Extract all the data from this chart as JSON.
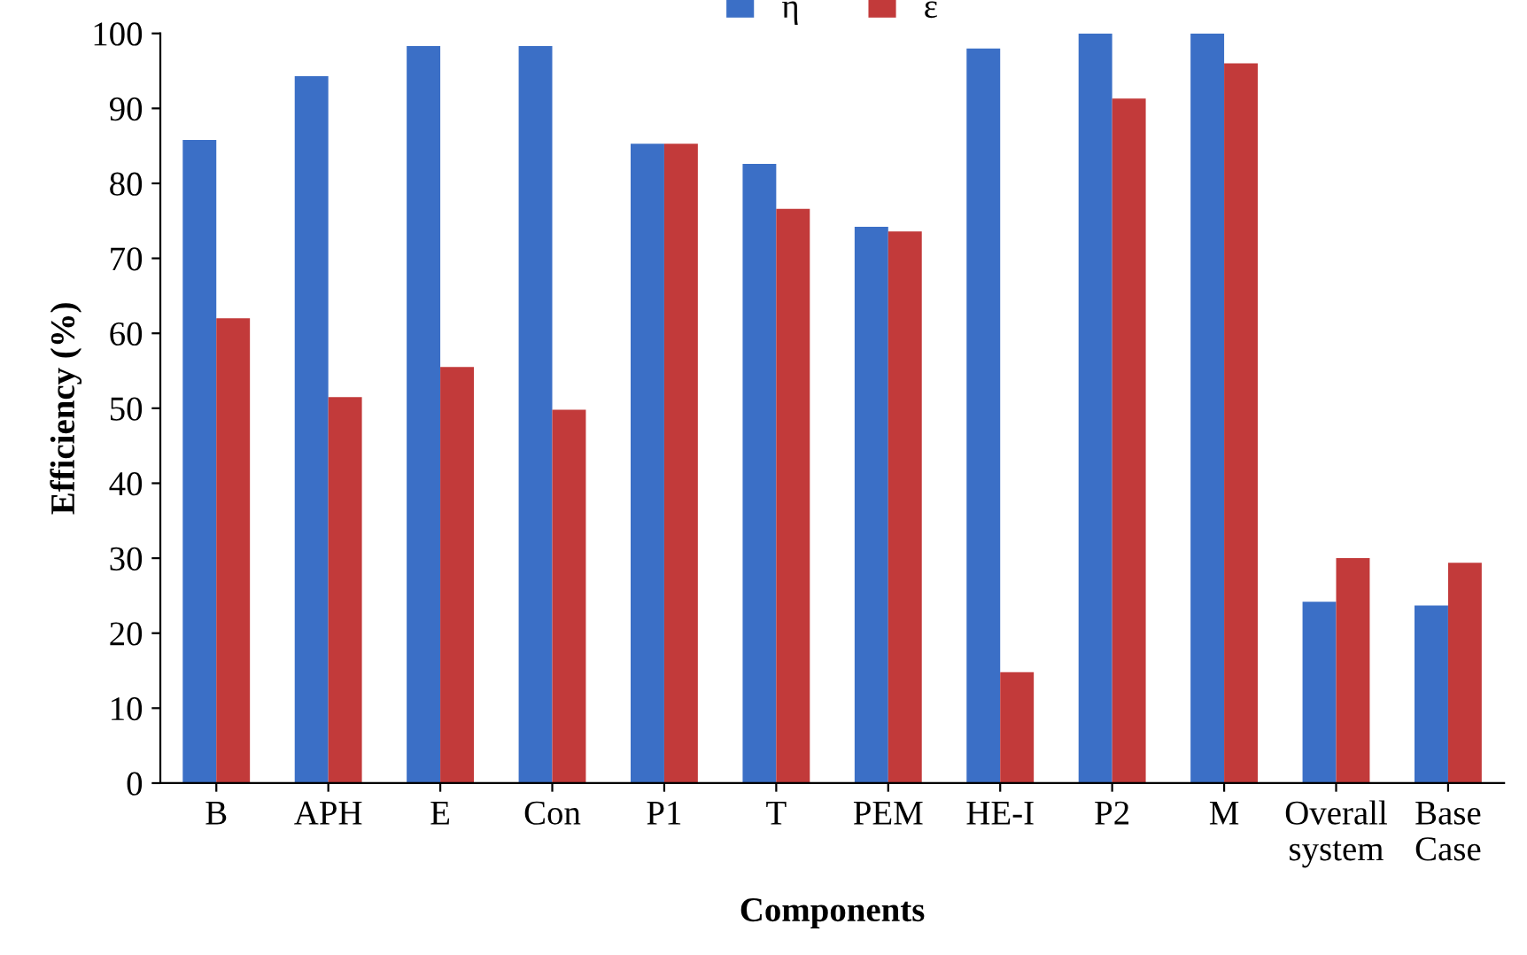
{
  "chart_data": {
    "type": "bar",
    "xlabel": "Components",
    "ylabel": "Efficiency (%)",
    "categories": [
      "B",
      "APH",
      "E",
      "Con",
      "P1",
      "T",
      "PEM",
      "HE-I",
      "P2",
      "M",
      "Overall\nsystem",
      "Base\nCase"
    ],
    "series": [
      {
        "name": "η",
        "color": "#3b6fc6",
        "values": [
          85.8,
          94.3,
          98.3,
          98.3,
          85.3,
          82.6,
          74.2,
          98.0,
          100,
          100,
          24.2,
          23.7
        ]
      },
      {
        "name": "ε",
        "color": "#c23a3a",
        "values": [
          62.0,
          51.5,
          55.5,
          49.8,
          85.3,
          76.6,
          73.6,
          14.8,
          91.3,
          96.0,
          30.0,
          29.4
        ]
      }
    ],
    "ylim": [
      0,
      100
    ],
    "yticks": [
      0,
      10,
      20,
      30,
      40,
      50,
      60,
      70,
      80,
      90,
      100
    ],
    "grid": false,
    "legend": "top"
  }
}
